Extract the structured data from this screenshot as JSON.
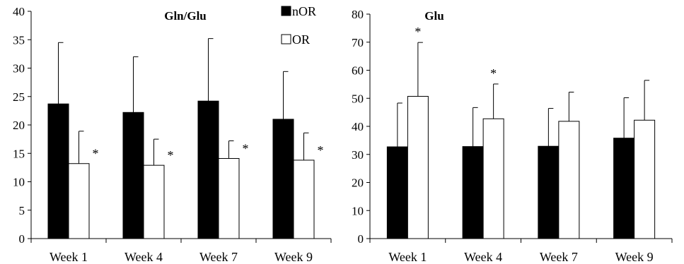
{
  "chart_data": [
    {
      "type": "bar",
      "title": "Gln/Glu",
      "categories": [
        "Week 1",
        "Week 4",
        "Week 7",
        "Week 9"
      ],
      "ylim": [
        0,
        40
      ],
      "yticks": [
        0,
        5,
        10,
        15,
        20,
        25,
        30,
        35,
        40
      ],
      "grid": false,
      "legend": "top-right",
      "series": [
        {
          "name": "nOR",
          "color": "#000000",
          "values": [
            23.7,
            22.2,
            24.2,
            21.0
          ],
          "error": [
            10.8,
            9.8,
            11.0,
            8.4
          ],
          "significance": [
            "",
            "",
            "",
            ""
          ]
        },
        {
          "name": "OR",
          "color": "#ffffff",
          "values": [
            13.2,
            12.9,
            14.1,
            13.8
          ],
          "error": [
            5.7,
            4.6,
            3.1,
            4.8
          ],
          "significance": [
            "*",
            "*",
            "*",
            "*"
          ]
        }
      ]
    },
    {
      "type": "bar",
      "title": "Glu",
      "categories": [
        "Week 1",
        "Week 4",
        "Week 7",
        "Week 9"
      ],
      "ylim": [
        0,
        80
      ],
      "yticks": [
        0,
        10,
        20,
        30,
        40,
        50,
        60,
        70,
        80
      ],
      "grid": false,
      "legend": "",
      "series": [
        {
          "name": "nOR",
          "color": "#000000",
          "values": [
            32.7,
            32.8,
            32.9,
            35.8
          ],
          "error": [
            15.6,
            13.9,
            13.5,
            14.4
          ],
          "significance": [
            "",
            "",
            "",
            ""
          ]
        },
        {
          "name": "OR",
          "color": "#ffffff",
          "values": [
            50.7,
            42.7,
            41.8,
            42.2
          ],
          "error": [
            19.2,
            12.4,
            10.4,
            14.2
          ],
          "significance": [
            "*",
            "*",
            "",
            ""
          ]
        }
      ]
    }
  ]
}
